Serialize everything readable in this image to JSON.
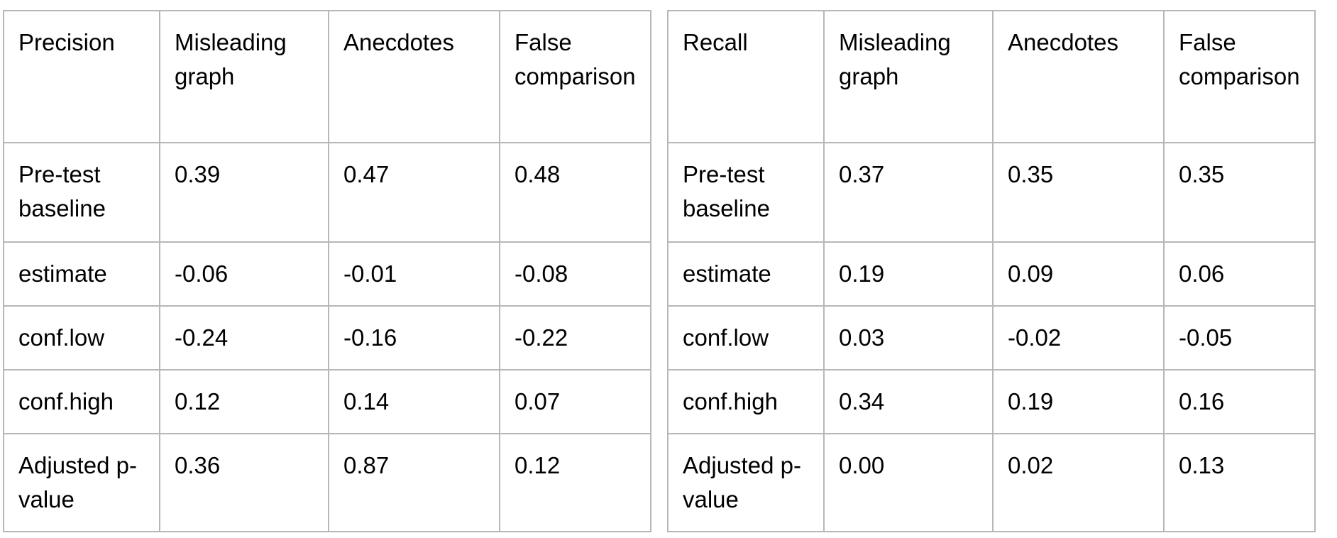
{
  "tables": [
    {
      "header": [
        "Precision",
        "Misleading graph",
        "Anecdotes",
        "False comparison"
      ],
      "rows": [
        [
          "Pre-test baseline",
          "0.39",
          "0.47",
          "0.48"
        ],
        [
          "estimate",
          "-0.06",
          "-0.01",
          "-0.08"
        ],
        [
          "conf.low",
          "-0.24",
          "-0.16",
          "-0.22"
        ],
        [
          "conf.high",
          "0.12",
          "0.14",
          "0.07"
        ],
        [
          "Adjusted p-value",
          "0.36",
          "0.87",
          "0.12"
        ]
      ]
    },
    {
      "header": [
        "Recall",
        "Misleading graph",
        "Anecdotes",
        "False comparison"
      ],
      "rows": [
        [
          "Pre-test baseline",
          "0.37",
          "0.35",
          "0.35"
        ],
        [
          "estimate",
          "0.19",
          "0.09",
          "0.06"
        ],
        [
          "conf.low",
          "0.03",
          "-0.02",
          "-0.05"
        ],
        [
          "conf.high",
          "0.34",
          "0.19",
          "0.16"
        ],
        [
          "Adjusted p-value",
          "0.00",
          "0.02",
          "0.13"
        ]
      ]
    }
  ],
  "colors": {
    "border": "#b7b7b7",
    "text": "#000000",
    "background": "#ffffff"
  }
}
